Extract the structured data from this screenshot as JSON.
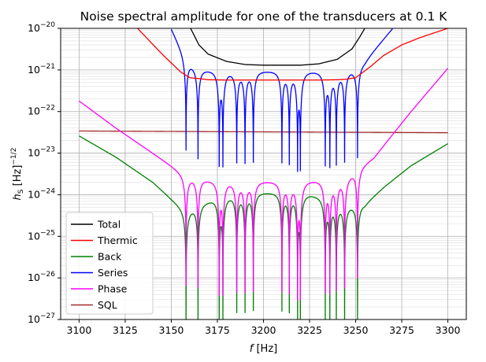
{
  "chart_data": {
    "type": "line",
    "title": "Noise spectral amplitude for one of the transducers at 0.1 K",
    "xlabel": {
      "base": "f",
      "unit": " [Hz]"
    },
    "ylabel": {
      "base": "h",
      "sub": "S",
      "unit": " [Hz]",
      "exp": "−1/2"
    },
    "xlim": [
      3090,
      3310
    ],
    "ylim": [
      1e-27,
      1e-20
    ],
    "yscale": "log",
    "grid": true,
    "xticks": [
      3100,
      3125,
      3150,
      3175,
      3200,
      3225,
      3250,
      3275,
      3300
    ],
    "yticks": [
      {
        "value": 1e-27,
        "mantissa": "10",
        "exp": "−27"
      },
      {
        "value": 1e-26,
        "mantissa": "10",
        "exp": "−26"
      },
      {
        "value": 1e-25,
        "mantissa": "10",
        "exp": "−25"
      },
      {
        "value": 1e-24,
        "mantissa": "10",
        "exp": "−24"
      },
      {
        "value": 1e-23,
        "mantissa": "10",
        "exp": "−23"
      },
      {
        "value": 1e-22,
        "mantissa": "10",
        "exp": "−22"
      },
      {
        "value": 1e-21,
        "mantissa": "10",
        "exp": "−21"
      },
      {
        "value": 1e-20,
        "mantissa": "10",
        "exp": "−20"
      }
    ],
    "legend": {
      "position": "lower-left"
    },
    "resonances": [
      3158,
      3164.5,
      3176,
      3178,
      3185.5,
      3190,
      3194.5,
      3210,
      3214,
      3218.5,
      3220,
      3233.5,
      3236,
      3239.5,
      3244,
      3251
    ],
    "series": [
      {
        "name": "Total",
        "color": "#000000",
        "points": [
          [
            3160,
            1.1e-20
          ],
          [
            3165,
            4e-21
          ],
          [
            3170,
            2.4e-21
          ],
          [
            3180,
            1.6e-21
          ],
          [
            3190,
            1.35e-21
          ],
          [
            3200,
            1.3e-21
          ],
          [
            3210,
            1.3e-21
          ],
          [
            3220,
            1.3e-21
          ],
          [
            3230,
            1.4e-21
          ],
          [
            3240,
            1.8e-21
          ],
          [
            3248,
            3.2e-21
          ],
          [
            3252,
            6e-21
          ],
          [
            3256,
            1.2e-20
          ]
        ]
      },
      {
        "name": "Thermic",
        "color": "#ff0000",
        "points": [
          [
            3100,
            1e-18
          ],
          [
            3130,
            1.2e-20
          ],
          [
            3145,
            2.4e-21
          ],
          [
            3155,
            9e-22
          ],
          [
            3160,
            6.5e-22
          ],
          [
            3165,
            6.2e-22
          ],
          [
            3170,
            5.8e-22
          ],
          [
            3180,
            5.7e-22
          ],
          [
            3190,
            5.7e-22
          ],
          [
            3200,
            5.7e-22
          ],
          [
            3210,
            5.7e-22
          ],
          [
            3220,
            5.7e-22
          ],
          [
            3230,
            5.7e-22
          ],
          [
            3240,
            5.8e-22
          ],
          [
            3245,
            6e-22
          ],
          [
            3250,
            6.5e-22
          ],
          [
            3258,
            1.2e-21
          ],
          [
            3265,
            2.2e-21
          ],
          [
            3275,
            4e-21
          ],
          [
            3285,
            6e-21
          ],
          [
            3300,
            1e-20
          ]
        ]
      },
      {
        "name": "Back",
        "color": "#008000",
        "points": [
          [
            3100,
            2.6e-23
          ],
          [
            3120,
            8e-24
          ],
          [
            3140,
            2e-24
          ],
          [
            3150,
            8e-25
          ],
          [
            3158,
            4e-25
          ],
          [
            3165,
            6e-25
          ],
          [
            3175,
            9e-25
          ],
          [
            3185,
            1.1e-24
          ],
          [
            3195,
            1.2e-24
          ],
          [
            3205,
            1.2e-24
          ],
          [
            3215,
            1.2e-24
          ],
          [
            3225,
            1.1e-24
          ],
          [
            3235,
            9e-25
          ],
          [
            3245,
            6e-25
          ],
          [
            3255,
            6e-25
          ],
          [
            3265,
            1.5e-24
          ],
          [
            3280,
            5e-24
          ],
          [
            3300,
            1.7e-23
          ]
        ]
      },
      {
        "name": "Series",
        "color": "#0000ff",
        "points": [
          [
            3150,
            1e-20
          ],
          [
            3158,
            1.8e-21
          ],
          [
            3165,
            1.1e-21
          ],
          [
            3180,
            1e-21
          ],
          [
            3200,
            1e-21
          ],
          [
            3220,
            1e-21
          ],
          [
            3240,
            1e-21
          ],
          [
            3250,
            1.1e-21
          ],
          [
            3255,
            1.6e-21
          ],
          [
            3260,
            3e-21
          ],
          [
            3270,
            1e-20
          ]
        ]
      },
      {
        "name": "Phase",
        "color": "#ff00ff",
        "points": [
          [
            3100,
            1.8e-22
          ],
          [
            3120,
            4e-23
          ],
          [
            3140,
            1e-23
          ],
          [
            3150,
            5e-24
          ],
          [
            3158,
            2.8e-24
          ],
          [
            3170,
            2.4e-24
          ],
          [
            3185,
            2.2e-24
          ],
          [
            3200,
            2.2e-24
          ],
          [
            3215,
            2.2e-24
          ],
          [
            3230,
            2.4e-24
          ],
          [
            3245,
            2.8e-24
          ],
          [
            3260,
            8e-24
          ],
          [
            3280,
            1e-22
          ],
          [
            3300,
            1.1e-21
          ]
        ]
      },
      {
        "name": "SQL",
        "color": "#a52a2a",
        "points": [
          [
            3100,
            3.4e-23
          ],
          [
            3300,
            3.1e-23
          ]
        ]
      }
    ]
  }
}
